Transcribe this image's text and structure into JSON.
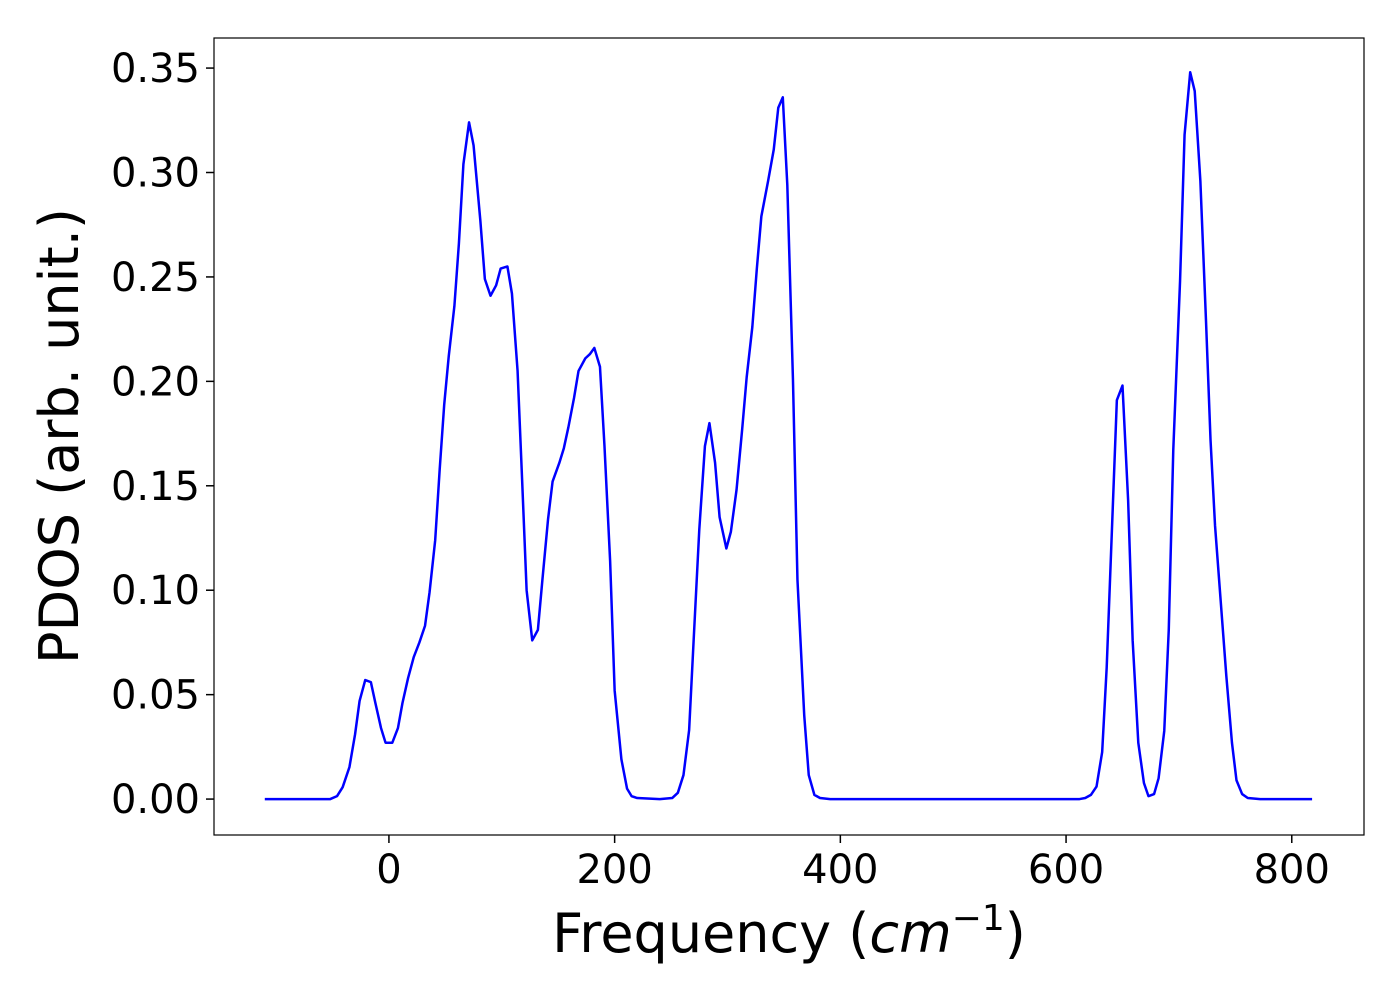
{
  "chart_data": {
    "type": "line",
    "xlabel": [
      "Frequency (",
      "cm",
      "−1",
      ")"
    ],
    "ylabel": "PDOS (arb. unit.)",
    "color": "#0000ff",
    "x": [
      -110,
      -52,
      -46,
      -41,
      -35,
      -30,
      -26,
      -21,
      -16,
      -12,
      -7,
      -3,
      3,
      8,
      12,
      17,
      22,
      27,
      32,
      36,
      41,
      45,
      49,
      53,
      58,
      62,
      66,
      71,
      75,
      81,
      85,
      90,
      95,
      99,
      105,
      109,
      114,
      118,
      122,
      127,
      132,
      136,
      141,
      145,
      151,
      155,
      159,
      164,
      168,
      174,
      178,
      182,
      187,
      191,
      196,
      200,
      206,
      211,
      215,
      220,
      240,
      251,
      256,
      261,
      266,
      270,
      275,
      280,
      284,
      289,
      293,
      299,
      303,
      308,
      313,
      317,
      322,
      326,
      330,
      336,
      341,
      345,
      349,
      353,
      358,
      362,
      368,
      372,
      377,
      382,
      391,
      612,
      617,
      622,
      627,
      632,
      636,
      641,
      645,
      650,
      655,
      659,
      664,
      669,
      673,
      678,
      682,
      687,
      691,
      695,
      701,
      705,
      710,
      714,
      719,
      724,
      728,
      732,
      737,
      742,
      747,
      751,
      756,
      761,
      772,
      818
    ],
    "values": [
      0,
      0,
      0.0014,
      0.0057,
      0.0153,
      0.031,
      0.047,
      0.057,
      0.056,
      0.046,
      0.034,
      0.027,
      0.027,
      0.034,
      0.046,
      0.058,
      0.068,
      0.075,
      0.083,
      0.099,
      0.124,
      0.158,
      0.189,
      0.212,
      0.236,
      0.266,
      0.304,
      0.324,
      0.313,
      0.277,
      0.249,
      0.241,
      0.246,
      0.254,
      0.255,
      0.242,
      0.205,
      0.153,
      0.1,
      0.076,
      0.081,
      0.105,
      0.134,
      0.152,
      0.161,
      0.168,
      0.178,
      0.192,
      0.205,
      0.211,
      0.213,
      0.216,
      0.207,
      0.169,
      0.114,
      0.052,
      0.019,
      0.005,
      0.0014,
      0.0005,
      0,
      0.0005,
      0.003,
      0.0115,
      0.033,
      0.076,
      0.129,
      0.169,
      0.18,
      0.161,
      0.135,
      0.12,
      0.128,
      0.148,
      0.177,
      0.202,
      0.226,
      0.254,
      0.279,
      0.296,
      0.311,
      0.331,
      0.336,
      0.294,
      0.201,
      0.105,
      0.04,
      0.0115,
      0.002,
      0.0005,
      0,
      0,
      0.0005,
      0.002,
      0.006,
      0.0225,
      0.063,
      0.134,
      0.191,
      0.198,
      0.143,
      0.076,
      0.027,
      0.0077,
      0.0014,
      0.0024,
      0.01,
      0.0326,
      0.081,
      0.167,
      0.248,
      0.318,
      0.348,
      0.339,
      0.296,
      0.229,
      0.172,
      0.131,
      0.095,
      0.059,
      0.027,
      0.009,
      0.0024,
      0.0005,
      0,
      0
    ],
    "xlim": [
      -155,
      864
    ],
    "ylim": [
      -0.0172,
      0.3644
    ],
    "xticks": [
      0,
      200,
      400,
      600,
      800
    ],
    "yticks": [
      {
        "value": 0,
        "label": "0.00"
      },
      {
        "value": 0.05,
        "label": "0.05"
      },
      {
        "value": 0.1,
        "label": "0.10"
      },
      {
        "value": 0.15,
        "label": "0.15"
      },
      {
        "value": 0.2,
        "label": "0.20"
      },
      {
        "value": 0.25,
        "label": "0.25"
      },
      {
        "value": 0.3,
        "label": "0.30"
      },
      {
        "value": 0.35,
        "label": "0.35"
      }
    ]
  }
}
